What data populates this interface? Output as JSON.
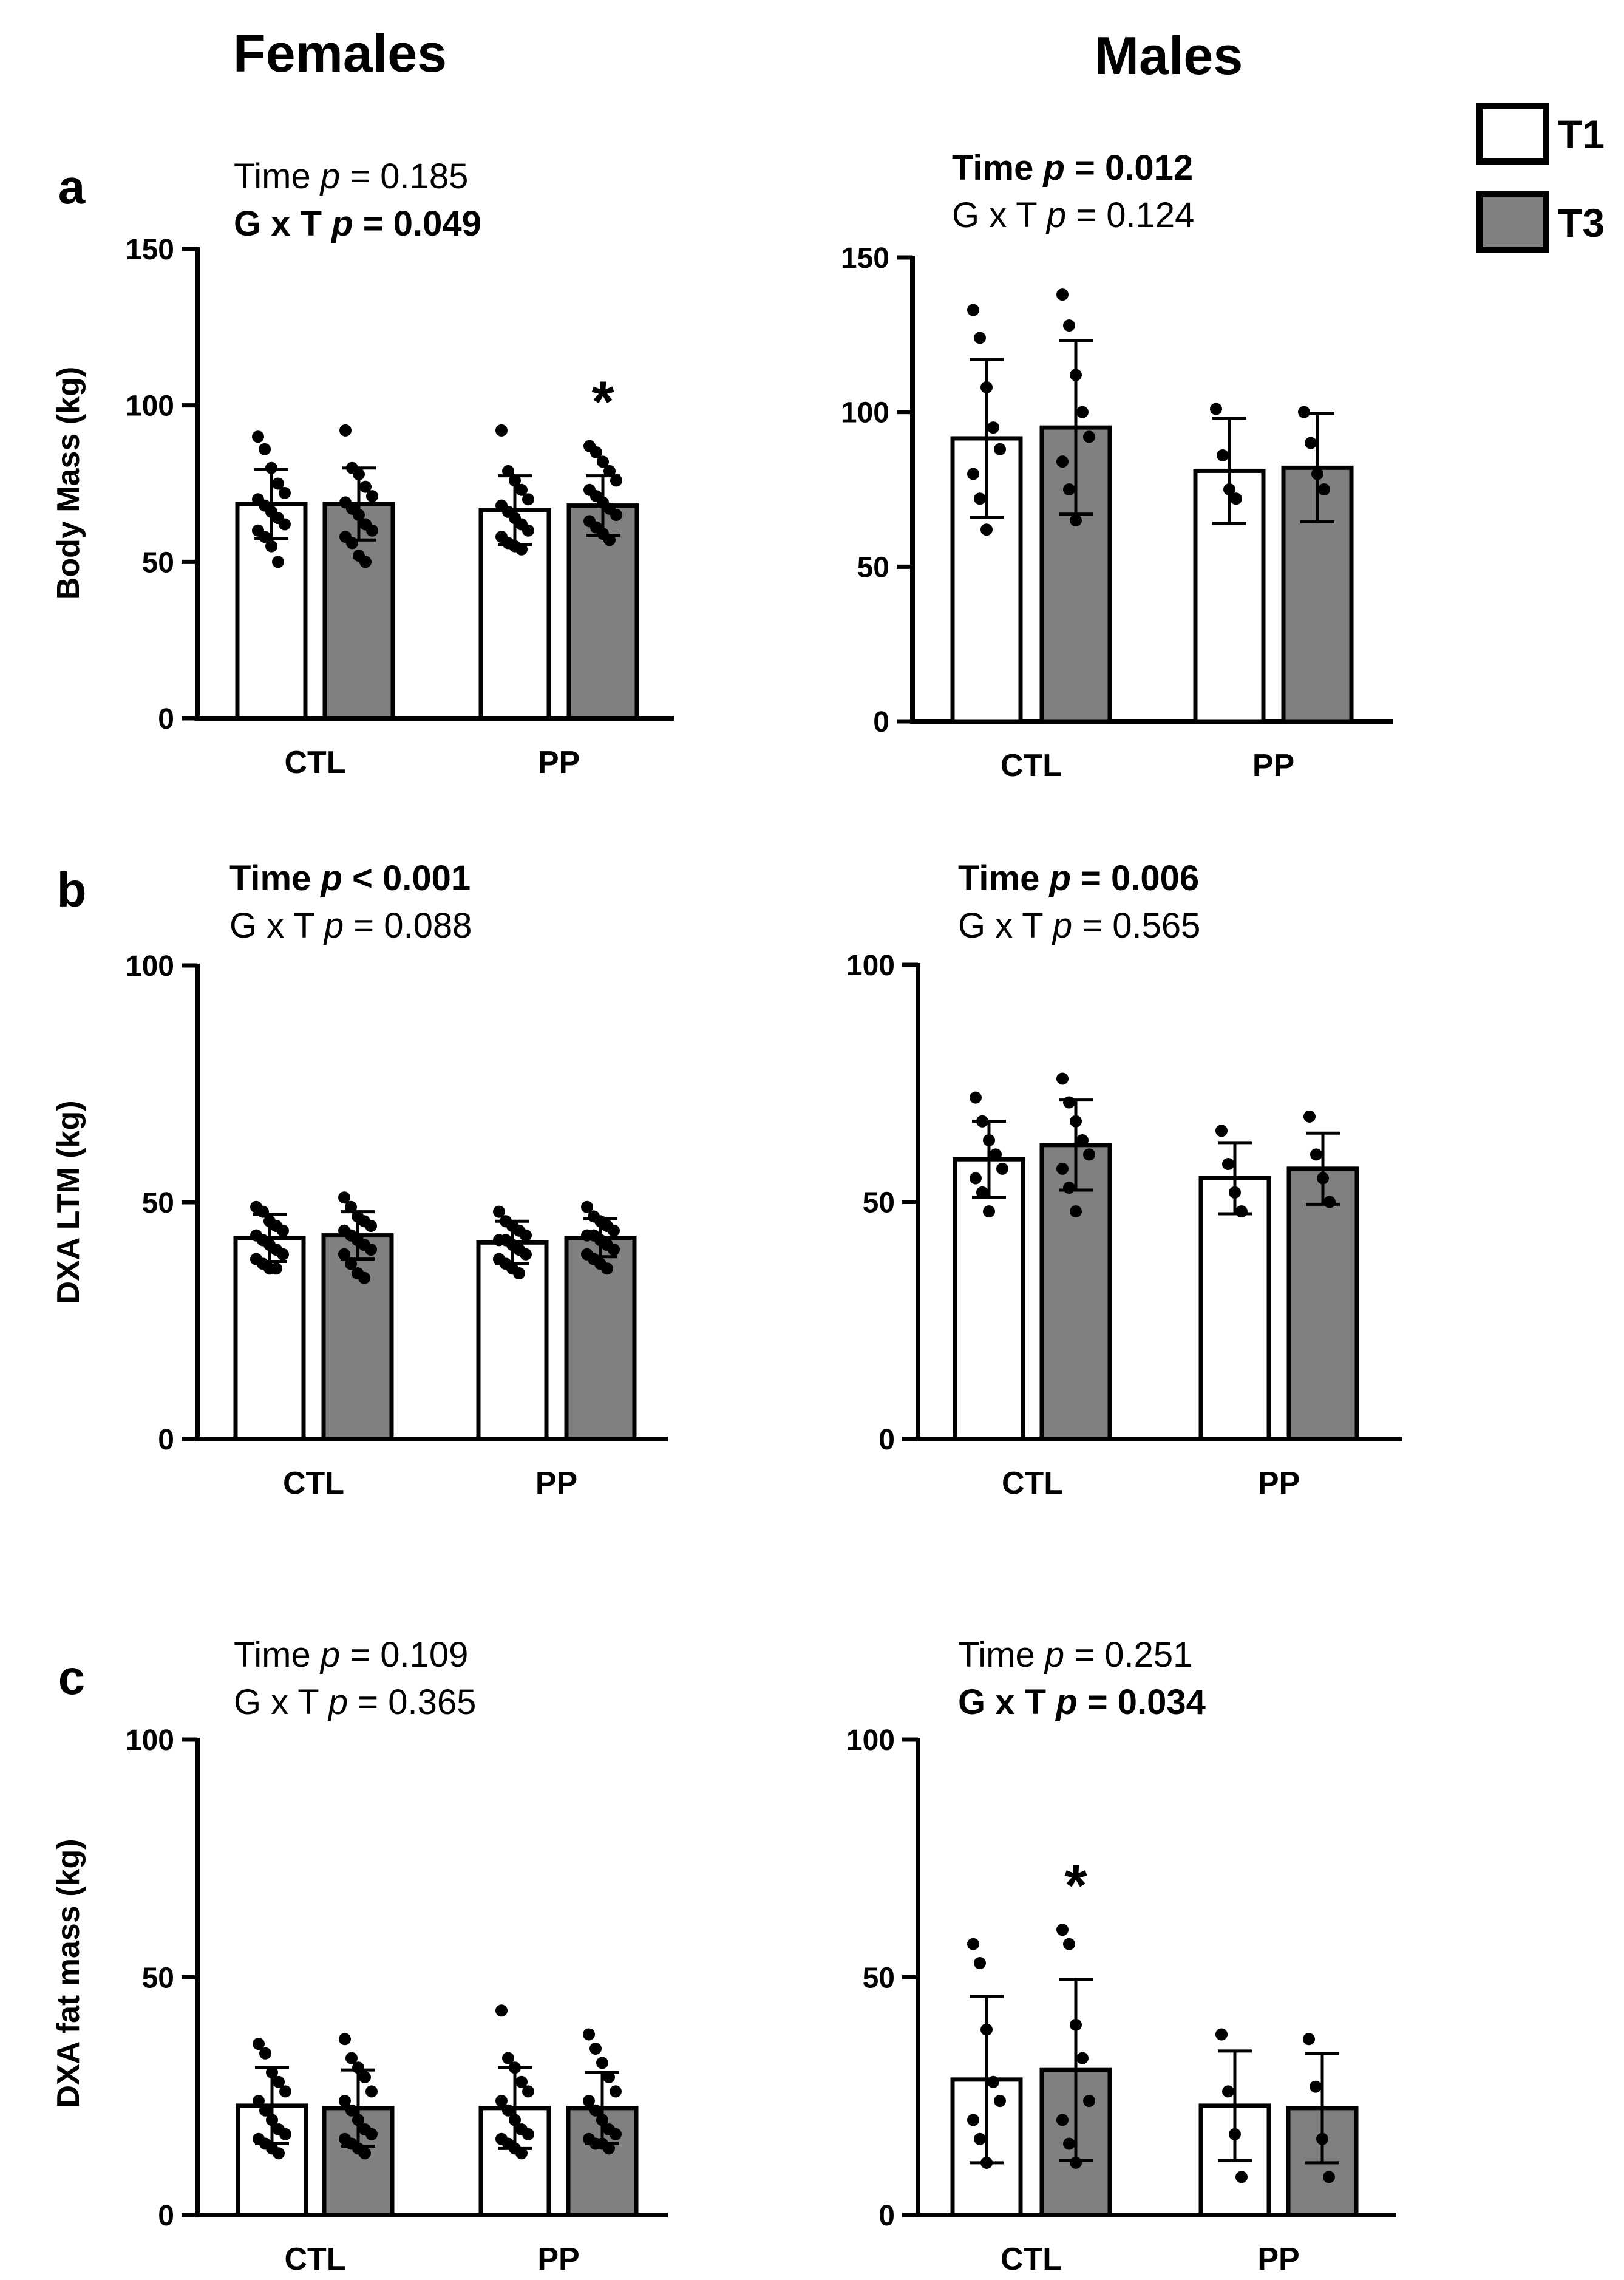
{
  "column_titles": {
    "left": "Females",
    "right": "Males"
  },
  "legend": [
    {
      "label": "T1",
      "color": "#ffffff"
    },
    {
      "label": "T3",
      "color": "#808080"
    }
  ],
  "colors": {
    "T1": "#ffffff",
    "T3": "#808080",
    "axis": "#000000"
  },
  "chart_data": [
    {
      "type": "bar",
      "panel": "a",
      "group": "Females",
      "ylabel": "Body Mass (kg)",
      "ylim": [
        0,
        150
      ],
      "yticks": [
        0,
        50,
        100,
        150
      ],
      "categories": [
        "CTL",
        "PP"
      ],
      "stats": [
        {
          "key": "Time",
          "p_op": "=",
          "p_value": "0.185",
          "bold": false
        },
        {
          "key": "G x T",
          "p_op": "=",
          "p_value": "0.049",
          "bold": true
        }
      ],
      "series": [
        {
          "name": "T1",
          "values": [
            68.5,
            66.5
          ],
          "sd": [
            11,
            11
          ],
          "points": [
            [
              90,
              86,
              80,
              75,
              72,
              70,
              68,
              66,
              64,
              62,
              60,
              58,
              55,
              50
            ],
            [
              92,
              79,
              76,
              73,
              70,
              68,
              66,
              64,
              62,
              60,
              58,
              56,
              55,
              54
            ]
          ]
        },
        {
          "name": "T3",
          "values": [
            68.5,
            68
          ],
          "sd": [
            11.5,
            9.5
          ],
          "points": [
            [
              92,
              80,
              78,
              74,
              71,
              69,
              67,
              65,
              62,
              60,
              58,
              56,
              52,
              50
            ],
            [
              87,
              85,
              82,
              79,
              76,
              73,
              71,
              69,
              67,
              65,
              63,
              61,
              59,
              57
            ]
          ]
        }
      ],
      "significance": [
        {
          "category": "PP",
          "series": "T3",
          "label": "*"
        }
      ]
    },
    {
      "type": "bar",
      "panel": "",
      "group": "Males",
      "ylabel": "",
      "ylim": [
        0,
        150
      ],
      "yticks": [
        0,
        50,
        100,
        150
      ],
      "categories": [
        "CTL",
        "PP"
      ],
      "stats": [
        {
          "key": "Time",
          "p_op": "=",
          "p_value": "0.012",
          "bold": true
        },
        {
          "key": "G x T",
          "p_op": "=",
          "p_value": "0.124",
          "bold": false
        }
      ],
      "series": [
        {
          "name": "T1",
          "values": [
            91.5,
            81
          ],
          "sd": [
            25.5,
            17
          ],
          "points": [
            [
              133,
              124,
              108,
              95,
              88,
              80,
              72,
              62
            ],
            [
              101,
              86,
              75,
              72
            ]
          ]
        },
        {
          "name": "T3",
          "values": [
            95,
            82
          ],
          "sd": [
            28,
            17.5
          ],
          "points": [
            [
              138,
              128,
              112,
              100,
              92,
              84,
              75,
              65
            ],
            [
              100,
              90,
              80,
              75
            ]
          ]
        }
      ],
      "significance": []
    },
    {
      "type": "bar",
      "panel": "b",
      "group": "Females",
      "ylabel": "DXA LTM (kg)",
      "ylim": [
        0,
        100
      ],
      "yticks": [
        0,
        50,
        100
      ],
      "categories": [
        "CTL",
        "PP"
      ],
      "stats": [
        {
          "key": "Time",
          "p_op": "<",
          "p_value": "0.001",
          "bold": true
        },
        {
          "key": "G x T",
          "p_op": "=",
          "p_value": "0.088",
          "bold": false
        }
      ],
      "series": [
        {
          "name": "T1",
          "values": [
            42.5,
            41.5
          ],
          "sd": [
            5,
            4.5
          ],
          "points": [
            [
              49,
              48,
              46,
              45,
              44,
              43,
              42,
              41,
              40,
              39,
              38,
              37,
              36,
              36
            ],
            [
              48,
              46,
              45,
              44,
              43,
              42,
              42,
              41,
              40,
              39,
              38,
              37,
              36,
              35
            ]
          ]
        },
        {
          "name": "T3",
          "values": [
            43,
            42.5
          ],
          "sd": [
            5,
            4
          ],
          "points": [
            [
              51,
              49,
              47,
              46,
              45,
              44,
              43,
              42,
              41,
              40,
              39,
              37,
              35,
              34
            ],
            [
              49,
              47,
              46,
              45,
              44,
              43,
              43,
              42,
              41,
              40,
              39,
              38,
              37,
              36
            ]
          ]
        }
      ],
      "significance": []
    },
    {
      "type": "bar",
      "panel": "",
      "group": "Males",
      "ylabel": "",
      "ylim": [
        0,
        100
      ],
      "yticks": [
        0,
        50,
        100
      ],
      "categories": [
        "CTL",
        "PP"
      ],
      "stats": [
        {
          "key": "Time",
          "p_op": "=",
          "p_value": "0.006",
          "bold": true
        },
        {
          "key": "G x T",
          "p_op": "=",
          "p_value": "0.565",
          "bold": false
        }
      ],
      "series": [
        {
          "name": "T1",
          "values": [
            59,
            55
          ],
          "sd": [
            8,
            7.5
          ],
          "points": [
            [
              72,
              67,
              63,
              60,
              57,
              55,
              52,
              48
            ],
            [
              65,
              58,
              52,
              48
            ]
          ]
        },
        {
          "name": "T3",
          "values": [
            62,
            57
          ],
          "sd": [
            9.5,
            7.5
          ],
          "points": [
            [
              76,
              71,
              67,
              63,
              60,
              57,
              53,
              48
            ],
            [
              68,
              60,
              55,
              50
            ]
          ]
        }
      ],
      "significance": []
    },
    {
      "type": "bar",
      "panel": "c",
      "group": "Females",
      "ylabel": "DXA fat mass (kg)",
      "ylim": [
        0,
        100
      ],
      "yticks": [
        0,
        50,
        100
      ],
      "categories": [
        "CTL",
        "PP"
      ],
      "stats": [
        {
          "key": "Time",
          "p_op": "=",
          "p_value": "0.109",
          "bold": false
        },
        {
          "key": "G x T",
          "p_op": "=",
          "p_value": "0.365",
          "bold": false
        }
      ],
      "series": [
        {
          "name": "T1",
          "values": [
            23,
            22.5
          ],
          "sd": [
            8,
            8.5
          ],
          "points": [
            [
              36,
              34,
              30,
              28,
              26,
              24,
              22,
              20,
              18,
              17,
              16,
              15,
              14,
              13
            ],
            [
              43,
              33,
              31,
              28,
              26,
              24,
              22,
              20,
              18,
              17,
              16,
              15,
              14,
              13
            ]
          ]
        },
        {
          "name": "T3",
          "values": [
            22.5,
            22.5
          ],
          "sd": [
            8,
            7.5
          ],
          "points": [
            [
              37,
              33,
              31,
              29,
              26,
              24,
              22,
              20,
              18,
              17,
              16,
              15,
              14,
              13
            ],
            [
              38,
              35,
              32,
              29,
              26,
              24,
              22,
              20,
              18,
              17,
              16,
              15,
              15,
              14
            ]
          ]
        }
      ],
      "significance": []
    },
    {
      "type": "bar",
      "panel": "",
      "group": "Males",
      "ylabel": "",
      "ylim": [
        0,
        100
      ],
      "yticks": [
        0,
        50,
        100
      ],
      "categories": [
        "CTL",
        "PP"
      ],
      "stats": [
        {
          "key": "Time",
          "p_op": "=",
          "p_value": "0.251",
          "bold": false
        },
        {
          "key": "G x T",
          "p_op": "=",
          "p_value": "0.034",
          "bold": true
        }
      ],
      "series": [
        {
          "name": "T1",
          "values": [
            28.5,
            23
          ],
          "sd": [
            17.5,
            11.5
          ],
          "points": [
            [
              57,
              53,
              39,
              28,
              24,
              20,
              16,
              11
            ],
            [
              38,
              26,
              17,
              8
            ]
          ]
        },
        {
          "name": "T3",
          "values": [
            30.5,
            22.5
          ],
          "sd": [
            19,
            11.5
          ],
          "points": [
            [
              60,
              57,
              40,
              33,
              24,
              20,
              15,
              11
            ],
            [
              37,
              27,
              16,
              8
            ]
          ]
        }
      ],
      "significance": [
        {
          "category": "CTL",
          "series": "T3",
          "label": "*"
        }
      ]
    }
  ]
}
